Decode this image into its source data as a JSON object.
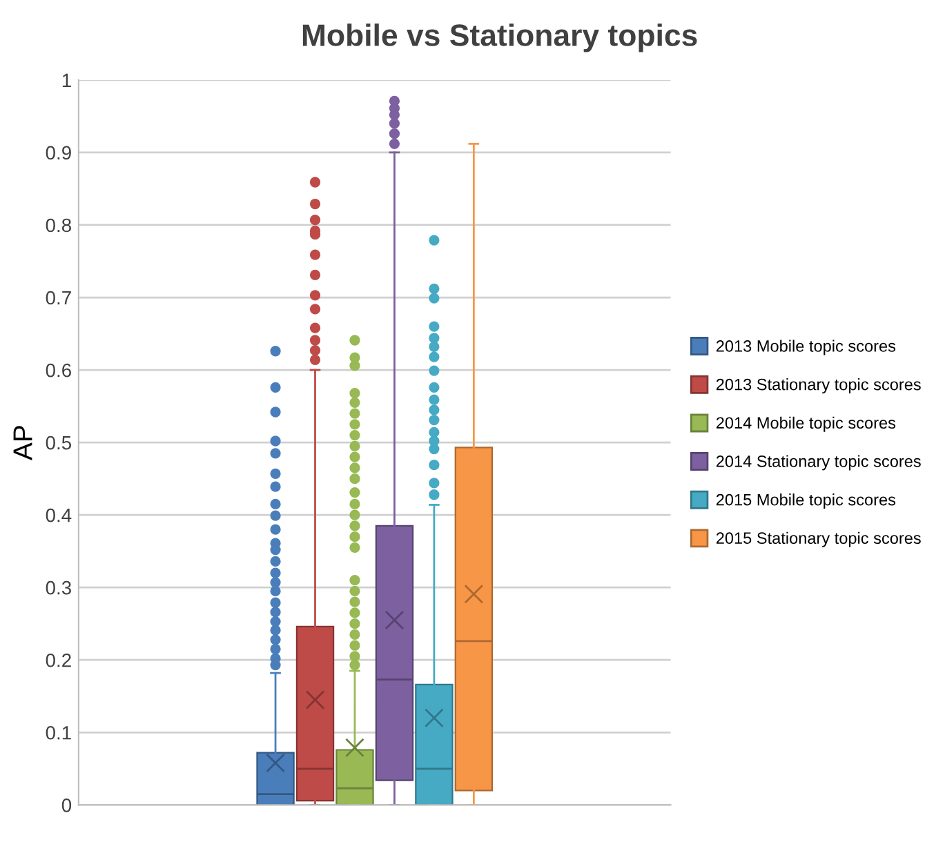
{
  "chart_data": {
    "type": "box",
    "title": "Mobile vs Stationary topics",
    "ylabel": "AP",
    "categories": [
      null
    ],
    "ylim": [
      0,
      1
    ],
    "yticks": [
      0,
      0.1,
      0.2,
      0.3,
      0.4,
      0.5,
      0.6,
      0.7,
      0.8,
      0.9,
      1
    ],
    "grid": "y",
    "legend": "right",
    "marker": "circle",
    "series": [
      {
        "name": "2013 Mobile topic scores",
        "color": "#4a7ebb",
        "boxes": [
          {
            "low": 0,
            "q1": 0,
            "median": 0.015,
            "q3": 0.072,
            "high": 0.182,
            "mean": 0.058,
            "outliers": [
              0.626,
              0.576,
              0.542,
              0.502,
              0.485,
              0.457,
              0.439,
              0.415,
              0.399,
              0.38,
              0.361,
              0.352,
              0.336,
              0.32,
              0.307,
              0.295,
              0.279,
              0.266,
              0.253,
              0.241,
              0.228,
              0.215,
              0.202,
              0.193
            ]
          }
        ]
      },
      {
        "name": "2013 Stationary topic scores",
        "color": "#be4b48",
        "boxes": [
          {
            "low": 0,
            "q1": 0.006,
            "median": 0.05,
            "q3": 0.246,
            "high": 0.6,
            "mean": 0.145,
            "outliers": [
              0.859,
              0.829,
              0.807,
              0.792,
              0.787,
              0.759,
              0.731,
              0.703,
              0.684,
              0.658,
              0.641,
              0.627,
              0.614
            ]
          }
        ]
      },
      {
        "name": "2014 Mobile topic scores",
        "color": "#98b954",
        "boxes": [
          {
            "low": 0,
            "q1": 0,
            "median": 0.023,
            "q3": 0.076,
            "high": 0.185,
            "mean": 0.079,
            "outliers": [
              0.641,
              0.617,
              0.606,
              0.568,
              0.555,
              0.54,
              0.525,
              0.51,
              0.495,
              0.48,
              0.465,
              0.45,
              0.431,
              0.415,
              0.4,
              0.385,
              0.37,
              0.355,
              0.31,
              0.295,
              0.28,
              0.265,
              0.25,
              0.235,
              0.22,
              0.205,
              0.193
            ]
          }
        ]
      },
      {
        "name": "2014 Stationary topic scores",
        "color": "#7d60a0",
        "boxes": [
          {
            "low": 0,
            "q1": 0.034,
            "median": 0.173,
            "q3": 0.385,
            "high": 0.9,
            "mean": 0.255,
            "outliers": [
              0.971,
              0.961,
              0.952,
              0.94,
              0.926,
              0.912
            ]
          }
        ]
      },
      {
        "name": "2015 Mobile topic scores",
        "color": "#46aac5",
        "boxes": [
          {
            "low": 0,
            "q1": 0,
            "median": 0.05,
            "q3": 0.166,
            "high": 0.414,
            "mean": 0.12,
            "outliers": [
              0.779,
              0.712,
              0.699,
              0.66,
              0.644,
              0.632,
              0.618,
              0.599,
              0.576,
              0.559,
              0.545,
              0.531,
              0.514,
              0.502,
              0.491,
              0.469,
              0.444,
              0.428
            ]
          }
        ]
      },
      {
        "name": "2015 Stationary topic scores",
        "color": "#f79646",
        "boxes": [
          {
            "low": 0,
            "q1": 0.02,
            "median": 0.226,
            "q3": 0.493,
            "high": 0.912,
            "mean": 0.291
          }
        ]
      }
    ]
  }
}
